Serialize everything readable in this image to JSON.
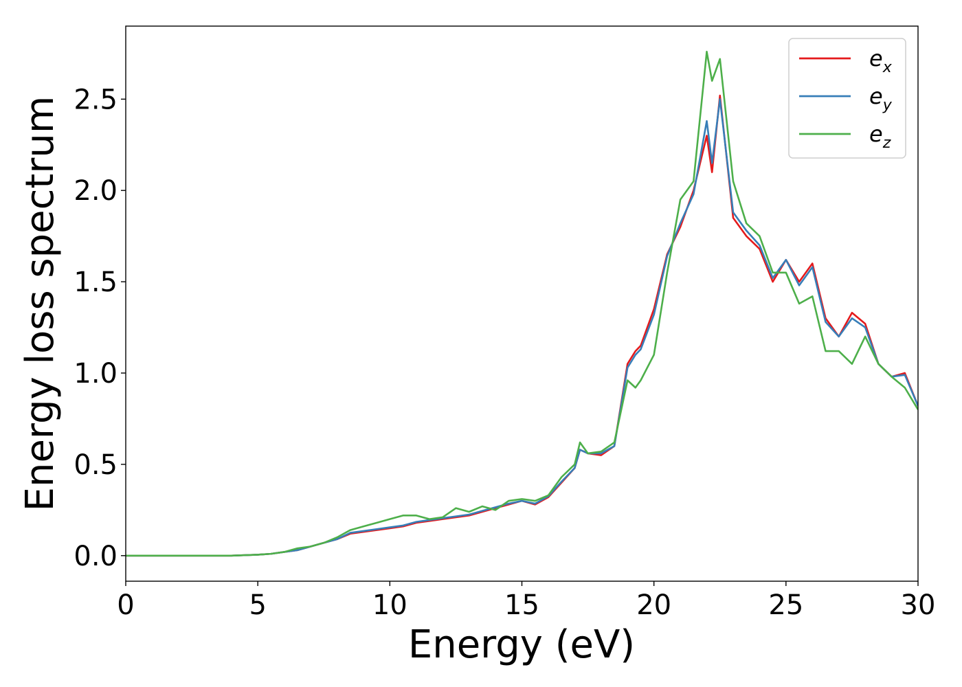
{
  "chart_data": {
    "type": "line",
    "title": "",
    "xlabel": "Energy (eV)",
    "ylabel": "Energy loss spectrum",
    "xlim": [
      0,
      30
    ],
    "ylim": [
      -0.14,
      2.9
    ],
    "xticks": [
      0,
      5,
      10,
      15,
      20,
      25,
      30
    ],
    "xtick_labels": [
      "0",
      "5",
      "10",
      "15",
      "20",
      "25",
      "30"
    ],
    "yticks": [
      0.0,
      0.5,
      1.0,
      1.5,
      2.0,
      2.5
    ],
    "ytick_labels": [
      "0.0",
      "0.5",
      "1.0",
      "1.5",
      "2.0",
      "2.5"
    ],
    "grid": false,
    "legend_position": "top-right",
    "series": [
      {
        "name": "e_x",
        "legend_base": "e",
        "legend_sub": "x",
        "color": "#e41a1c",
        "x": [
          0,
          4,
          5,
          5.5,
          6,
          6.5,
          7,
          7.5,
          8,
          8.5,
          9,
          9.5,
          10,
          10.5,
          11,
          11.5,
          12,
          12.5,
          13,
          13.5,
          14,
          14.5,
          15,
          15.5,
          16,
          16.5,
          17,
          17.2,
          17.5,
          18,
          18.5,
          19,
          19.3,
          19.5,
          20,
          20.5,
          21,
          21.5,
          22,
          22.2,
          22.5,
          23,
          23.5,
          24,
          24.5,
          25,
          25.5,
          26,
          26.5,
          27,
          27.5,
          28,
          28.5,
          29,
          29.5,
          30
        ],
        "y": [
          0.0,
          0.0,
          0.005,
          0.01,
          0.02,
          0.03,
          0.05,
          0.07,
          0.09,
          0.12,
          0.13,
          0.14,
          0.15,
          0.16,
          0.18,
          0.19,
          0.2,
          0.21,
          0.22,
          0.24,
          0.26,
          0.28,
          0.3,
          0.28,
          0.32,
          0.4,
          0.48,
          0.58,
          0.56,
          0.55,
          0.6,
          1.05,
          1.12,
          1.15,
          1.35,
          1.65,
          1.8,
          2.0,
          2.3,
          2.1,
          2.52,
          1.85,
          1.75,
          1.68,
          1.5,
          1.62,
          1.5,
          1.6,
          1.3,
          1.2,
          1.33,
          1.27,
          1.05,
          0.98,
          1.0,
          0.82
        ]
      },
      {
        "name": "e_y",
        "legend_base": "e",
        "legend_sub": "y",
        "color": "#377eb8",
        "x": [
          0,
          4,
          5,
          5.5,
          6,
          6.5,
          7,
          7.5,
          8,
          8.5,
          9,
          9.5,
          10,
          10.5,
          11,
          11.5,
          12,
          12.5,
          13,
          13.5,
          14,
          14.5,
          15,
          15.5,
          16,
          16.5,
          17,
          17.2,
          17.5,
          18,
          18.5,
          19,
          19.3,
          19.5,
          20,
          20.5,
          21,
          21.5,
          22,
          22.2,
          22.5,
          23,
          23.5,
          24,
          24.5,
          25,
          25.5,
          26,
          26.5,
          27,
          27.5,
          28,
          28.5,
          29,
          29.5,
          30
        ],
        "y": [
          0.0,
          0.0,
          0.005,
          0.01,
          0.02,
          0.03,
          0.05,
          0.07,
          0.09,
          0.125,
          0.135,
          0.145,
          0.155,
          0.165,
          0.185,
          0.195,
          0.205,
          0.215,
          0.225,
          0.245,
          0.265,
          0.285,
          0.3,
          0.285,
          0.325,
          0.405,
          0.48,
          0.58,
          0.56,
          0.56,
          0.6,
          1.03,
          1.1,
          1.13,
          1.32,
          1.64,
          1.82,
          1.98,
          2.38,
          2.15,
          2.5,
          1.88,
          1.78,
          1.7,
          1.52,
          1.62,
          1.48,
          1.58,
          1.28,
          1.2,
          1.3,
          1.25,
          1.05,
          0.98,
          0.99,
          0.82
        ]
      },
      {
        "name": "e_z",
        "legend_base": "e",
        "legend_sub": "z",
        "color": "#4daf4a",
        "x": [
          0,
          4,
          5,
          5.5,
          6,
          6.5,
          7,
          7.5,
          8,
          8.5,
          9,
          9.5,
          10,
          10.5,
          11,
          11.5,
          12,
          12.5,
          13,
          13.5,
          14,
          14.5,
          15,
          15.5,
          16,
          16.5,
          17,
          17.2,
          17.5,
          18,
          18.5,
          19,
          19.3,
          19.5,
          20,
          20.5,
          21,
          21.5,
          22,
          22.2,
          22.5,
          23,
          23.5,
          24,
          24.5,
          25,
          25.5,
          26,
          26.5,
          27,
          27.5,
          28,
          28.5,
          29,
          29.5,
          30
        ],
        "y": [
          0.0,
          0.0,
          0.005,
          0.01,
          0.02,
          0.04,
          0.05,
          0.07,
          0.1,
          0.14,
          0.16,
          0.18,
          0.2,
          0.22,
          0.22,
          0.2,
          0.21,
          0.26,
          0.24,
          0.27,
          0.25,
          0.3,
          0.31,
          0.3,
          0.33,
          0.43,
          0.5,
          0.62,
          0.56,
          0.57,
          0.62,
          0.96,
          0.92,
          0.96,
          1.1,
          1.55,
          1.95,
          2.05,
          2.76,
          2.6,
          2.72,
          2.05,
          1.82,
          1.75,
          1.55,
          1.55,
          1.38,
          1.42,
          1.12,
          1.12,
          1.05,
          1.2,
          1.05,
          0.98,
          0.92,
          0.8
        ]
      }
    ]
  }
}
